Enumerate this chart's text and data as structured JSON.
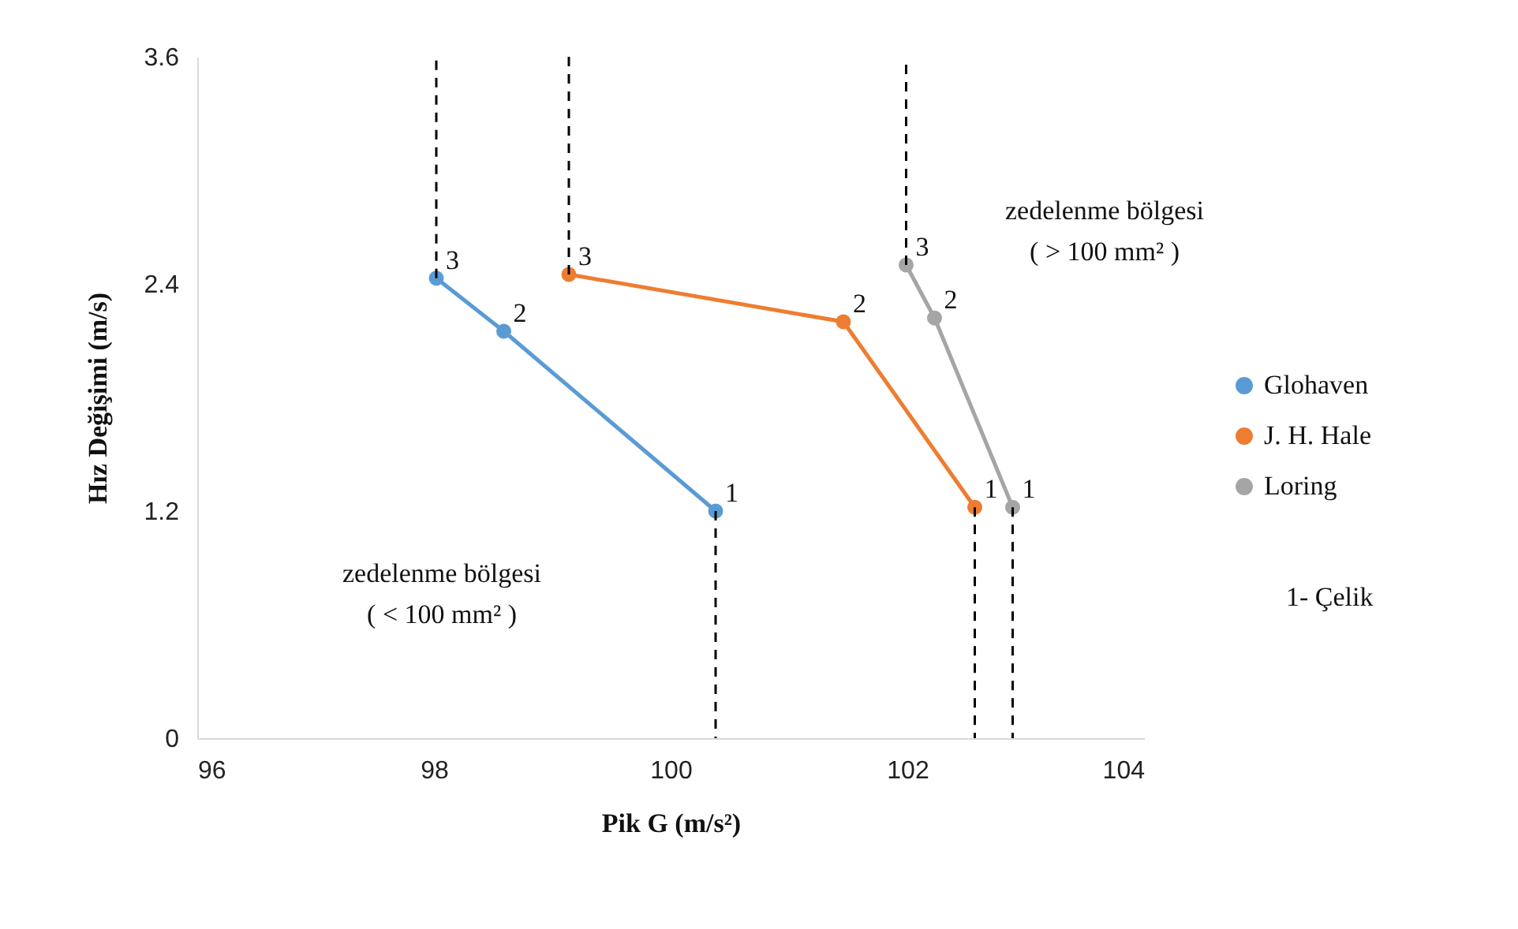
{
  "chart_data": {
    "type": "line",
    "xlabel": "Pik G (m/s²)",
    "ylabel": "Hız Değişimi (m/s)",
    "xlim": [
      96,
      104
    ],
    "xticks": [
      96,
      98,
      100,
      102,
      104
    ],
    "ylim": [
      0,
      3.6
    ],
    "yticks": [
      0,
      1.2,
      2.4,
      3.6
    ],
    "grid": false,
    "legend": "right",
    "marker": "circle",
    "line_style": "solid",
    "series": [
      {
        "name": "Glohaven",
        "color": "#5b9bd5",
        "x": [
          100.38,
          98.59,
          98.02
        ],
        "values": [
          1.2,
          2.15,
          2.43
        ]
      },
      {
        "name": "J. H. Hale",
        "color": "#ed7d31",
        "x": [
          102.57,
          101.46,
          99.14
        ],
        "values": [
          1.22,
          2.2,
          2.45
        ]
      },
      {
        "name": "Loring",
        "color": "#a5a5a5",
        "x": [
          102.89,
          102.23,
          101.99
        ],
        "values": [
          1.22,
          2.22,
          2.5
        ]
      }
    ],
    "ref_lines": [
      {
        "axis": "x",
        "value": 98.02,
        "color": "#000000",
        "line_style": "dashed"
      },
      {
        "axis": "x",
        "value": 99.14,
        "color": "#000000",
        "line_style": "dashed"
      },
      {
        "axis": "x",
        "value": 101.99,
        "color": "#000000",
        "line_style": "dashed"
      },
      {
        "axis": "x",
        "value": 100.38,
        "color": "#000000",
        "line_style": "dashed"
      },
      {
        "axis": "x",
        "value": 102.57,
        "color": "#000000",
        "line_style": "dashed"
      },
      {
        "axis": "x",
        "value": 102.89,
        "color": "#000000",
        "line_style": "dashed"
      }
    ],
    "annotations": [
      "zedelenme bölgesi ( < 100 mm² )",
      "zedelenme bölgesi ( > 100 mm² )",
      "1- Çelik",
      {
        "text": "1",
        "x": 100.38,
        "y": 1.2
      },
      {
        "text": "2",
        "x": 98.59,
        "y": 2.15
      },
      {
        "text": "3",
        "x": 98.02,
        "y": 2.43
      },
      {
        "text": "1",
        "x": 102.57,
        "y": 1.22
      },
      {
        "text": "2",
        "x": 101.46,
        "y": 2.2
      },
      {
        "text": "3",
        "x": 99.14,
        "y": 2.45
      },
      {
        "text": "1",
        "x": 102.89,
        "y": 1.22
      },
      {
        "text": "2",
        "x": 102.23,
        "y": 2.22
      },
      {
        "text": "3",
        "x": 101.99,
        "y": 2.5
      }
    ]
  }
}
